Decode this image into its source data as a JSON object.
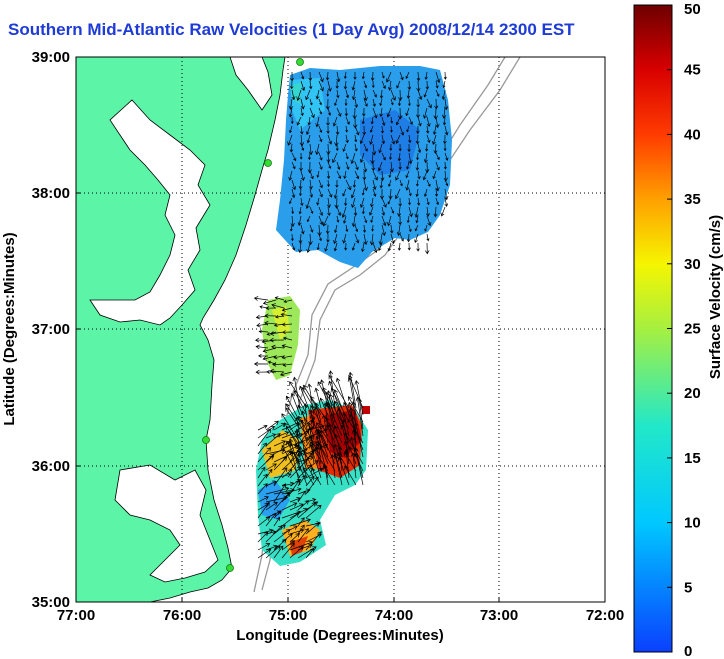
{
  "title": "Southern Mid-Atlantic Raw Velocities (1 Day Avg) 2008/12/14 2300 EST",
  "axes": {
    "xlabel": "Longitude (Degrees:Minutes)",
    "ylabel": "Latitude (Degrees:Minutes)",
    "x_ticks": [
      "77:00",
      "76:00",
      "75:00",
      "74:00",
      "73:00",
      "72:00"
    ],
    "y_ticks": [
      "39:00",
      "38:00",
      "37:00",
      "36:00",
      "35:00"
    ]
  },
  "colorbar": {
    "label": "Surface Velocity (cm/s)",
    "ticks": [
      "50",
      "45",
      "40",
      "35",
      "30",
      "25",
      "20",
      "15",
      "10",
      "5",
      "0"
    ],
    "min": 0,
    "max": 50
  },
  "colors": {
    "land": "#5cf5a8",
    "coast_line": "#000000",
    "title": "#1f3bd6",
    "station": "#33dd33",
    "bathymetry": "#999999"
  },
  "chart_data": {
    "type": "heatmap",
    "title": "Southern Mid-Atlantic Raw Velocities (1 Day Avg) 2008/12/14 2300 EST",
    "xlabel": "Longitude (Degrees:Minutes)",
    "ylabel": "Latitude (Degrees:Minutes)",
    "xlim": [
      -77,
      -72
    ],
    "ylim": [
      35,
      39
    ],
    "grid": true,
    "colorbar_range_cm_s": [
      0,
      50
    ],
    "regions": [
      {
        "name": "",
        "lon_range": [
          -74.95,
          -73.55
        ],
        "lat_range": [
          37.55,
          39.0
        ],
        "speed_cm_s": 8
      },
      {
        "name": "",
        "lon_range": [
          -75.1,
          -74.8
        ],
        "lat_range": [
          36.75,
          37.25
        ],
        "speed_cm_s": 20
      },
      {
        "name": "",
        "lon_range": [
          -74.9,
          -74.3
        ],
        "lat_range": [
          35.9,
          36.55
        ],
        "speed_cm_s": 45
      },
      {
        "name": "",
        "lon_range": [
          -75.25,
          -74.6
        ],
        "lat_range": [
          35.3,
          35.9
        ],
        "speed_cm_s": 15
      }
    ]
  }
}
